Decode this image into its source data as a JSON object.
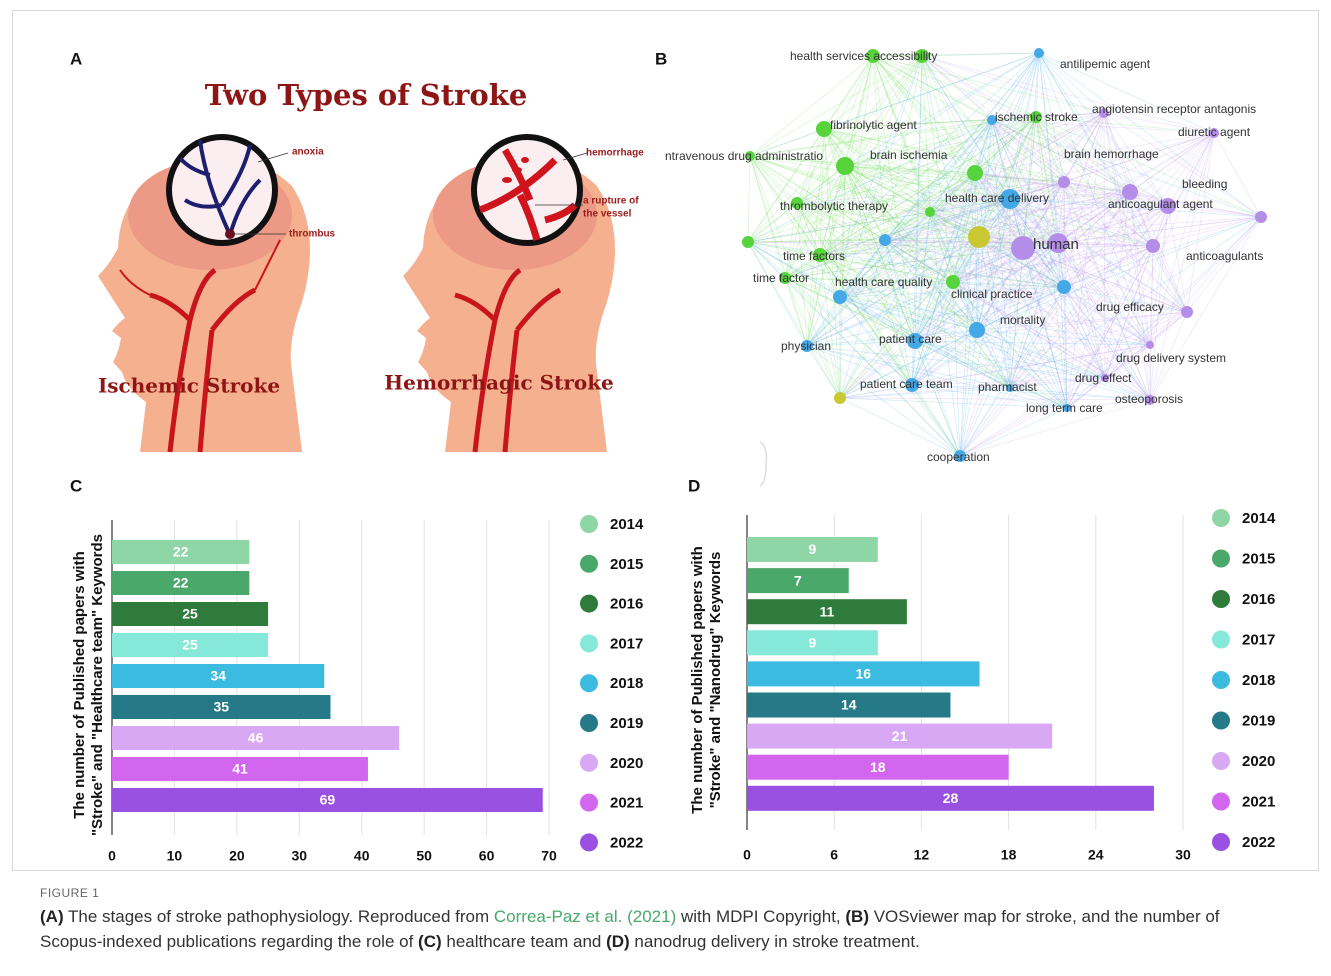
{
  "panel_a": {
    "label": "A",
    "title": "Two Types of Stroke",
    "left_caption": "Ischemic Stroke",
    "right_caption": "Hemorrhagic Stroke",
    "left_annotations": [
      "anoxia",
      "thrombus"
    ],
    "right_annotations": [
      "hemorrhage"
    ],
    "rupture_lines": [
      "a rupture of",
      "the vessel"
    ]
  },
  "panel_b": {
    "label": "B",
    "nodes": [
      {
        "label": "health services accessibility",
        "color": "#57d43c"
      },
      {
        "label": "antilipemic agent",
        "color": "#45a8e6"
      },
      {
        "label": "angiotensin receptor antagonis",
        "color": "#b48de8"
      },
      {
        "label": "fibrinolytic agent",
        "color": "#57d43c"
      },
      {
        "label": "ischemic stroke",
        "color": "#57d43c"
      },
      {
        "label": "diuretic agent",
        "color": "#b48de8"
      },
      {
        "label": "ntravenous drug administratio",
        "color": "#57d43c"
      },
      {
        "label": "brain ischemia",
        "color": "#57d43c"
      },
      {
        "label": "brain hemorrhage",
        "color": "#b48de8"
      },
      {
        "label": "bleeding",
        "color": "#b48de8"
      },
      {
        "label": "health care delivery",
        "color": "#45a8e6"
      },
      {
        "label": "thrombolytic therapy",
        "color": "#57d43c"
      },
      {
        "label": "anticoagulant agent",
        "color": "#b48de8"
      },
      {
        "label": "human",
        "color": "#b48de8"
      },
      {
        "label": "anticoagulants",
        "color": "#b48de8"
      },
      {
        "label": "time factors",
        "color": "#57d43c"
      },
      {
        "label": "time factor",
        "color": "#57d43c"
      },
      {
        "label": "health care quality",
        "color": "#45a8e6"
      },
      {
        "label": "clinical practice",
        "color": "#45a8e6"
      },
      {
        "label": "drug efficacy",
        "color": "#b48de8"
      },
      {
        "label": "mortality",
        "color": "#45a8e6"
      },
      {
        "label": "physician",
        "color": "#45a8e6"
      },
      {
        "label": "patient care",
        "color": "#45a8e6"
      },
      {
        "label": "drug delivery system",
        "color": "#b48de8"
      },
      {
        "label": "drug effect",
        "color": "#b48de8"
      },
      {
        "label": "patient care team",
        "color": "#45a8e6"
      },
      {
        "label": "pharmacist",
        "color": "#45a8e6"
      },
      {
        "label": "osteoporosis",
        "color": "#b48de8"
      },
      {
        "label": "long term care",
        "color": "#45a8e6"
      },
      {
        "label": "cooperation",
        "color": "#45a8e6"
      }
    ]
  },
  "chart_data": [
    {
      "type": "bar",
      "orientation": "horizontal",
      "panel_label": "C",
      "ylabel": [
        "The number of Published papers with",
        "\"Stroke\" and \"Healthcare team\" Keywords"
      ],
      "categories": [
        "2014",
        "2015",
        "2016",
        "2017",
        "2018",
        "2019",
        "2020",
        "2021",
        "2022"
      ],
      "values": [
        22,
        22,
        25,
        25,
        34,
        35,
        46,
        41,
        69
      ],
      "colors": [
        "#8fd6a6",
        "#4aa86a",
        "#2e7b3c",
        "#86e8d8",
        "#3cbbe0",
        "#267a88",
        "#d8a8f5",
        "#d266ee",
        "#9a50e0"
      ],
      "xlim": [
        0,
        70
      ],
      "xticks": [
        0,
        10,
        20,
        30,
        40,
        50,
        60,
        70
      ],
      "grid": true
    },
    {
      "type": "bar",
      "orientation": "horizontal",
      "panel_label": "D",
      "ylabel": [
        "The number of Published papers with",
        "\"Stroke\" and \"Nanodrug\" Keywords"
      ],
      "categories": [
        "2014",
        "2015",
        "2016",
        "2017",
        "2018",
        "2019",
        "2020",
        "2021",
        "2022"
      ],
      "values": [
        9,
        7,
        11,
        9,
        16,
        14,
        21,
        18,
        28
      ],
      "colors": [
        "#8fd6a6",
        "#4aa86a",
        "#2e7b3c",
        "#86e8d8",
        "#3cbbe0",
        "#267a88",
        "#d8a8f5",
        "#d266ee",
        "#9a50e0"
      ],
      "xlim": [
        0,
        30
      ],
      "xticks": [
        0,
        6,
        12,
        18,
        24,
        30
      ],
      "grid": true
    }
  ],
  "caption": {
    "label": "FIGURE 1",
    "segments": [
      "(A)",
      " The stages of stroke pathophysiology. Reproduced from ",
      "Correa-Paz et al. (2021)",
      " with MDPI Copyright, ",
      "(B)",
      " VOSviewer map for stroke, and the number of Scopus-indexed publications regarding the role of ",
      "(C)",
      " healthcare team and ",
      "(D)",
      " nanodrug delivery in stroke treatment."
    ]
  }
}
